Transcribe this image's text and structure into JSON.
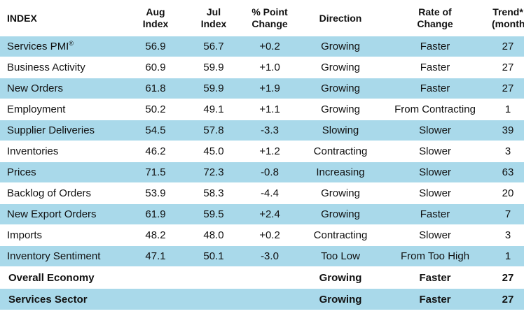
{
  "headers": {
    "index": "INDEX",
    "aug": [
      "Aug",
      "Index"
    ],
    "jul": [
      "Jul",
      "Index"
    ],
    "change": [
      "% Point",
      "Change"
    ],
    "direction": "Direction",
    "rate": [
      "Rate of",
      "Change"
    ],
    "trend": [
      "Trend*",
      "(months)"
    ]
  },
  "rows": [
    {
      "name": "Services PMI",
      "sup": "®",
      "aug": "56.9",
      "jul": "56.7",
      "change": "+0.2",
      "direction": "Growing",
      "rate": "Faster",
      "trend": "27"
    },
    {
      "name": "Business Activity",
      "aug": "60.9",
      "jul": "59.9",
      "change": "+1.0",
      "direction": "Growing",
      "rate": "Faster",
      "trend": "27"
    },
    {
      "name": "New Orders",
      "aug": "61.8",
      "jul": "59.9",
      "change": "+1.9",
      "direction": "Growing",
      "rate": "Faster",
      "trend": "27"
    },
    {
      "name": "Employment",
      "aug": "50.2",
      "jul": "49.1",
      "change": "+1.1",
      "direction": "Growing",
      "rate": "From Contracting",
      "trend": "1"
    },
    {
      "name": "Supplier Deliveries",
      "aug": "54.5",
      "jul": "57.8",
      "change": "-3.3",
      "direction": "Slowing",
      "rate": "Slower",
      "trend": "39"
    },
    {
      "name": "Inventories",
      "aug": "46.2",
      "jul": "45.0",
      "change": "+1.2",
      "direction": "Contracting",
      "rate": "Slower",
      "trend": "3"
    },
    {
      "name": "Prices",
      "aug": "71.5",
      "jul": "72.3",
      "change": "-0.8",
      "direction": "Increasing",
      "rate": "Slower",
      "trend": "63"
    },
    {
      "name": "Backlog of Orders",
      "aug": "53.9",
      "jul": "58.3",
      "change": "-4.4",
      "direction": "Growing",
      "rate": "Slower",
      "trend": "20"
    },
    {
      "name": "New Export Orders",
      "aug": "61.9",
      "jul": "59.5",
      "change": "+2.4",
      "direction": "Growing",
      "rate": "Faster",
      "trend": "7"
    },
    {
      "name": "Imports",
      "aug": "48.2",
      "jul": "48.0",
      "change": "+0.2",
      "direction": "Contracting",
      "rate": "Slower",
      "trend": "3"
    },
    {
      "name": "Inventory Sentiment",
      "aug": "47.1",
      "jul": "50.1",
      "change": "-3.0",
      "direction": "Too Low",
      "rate": "From Too High",
      "trend": "1"
    }
  ],
  "totals": [
    {
      "name": "Overall Economy",
      "direction": "Growing",
      "rate": "Faster",
      "trend": "27"
    },
    {
      "name": "Services Sector",
      "direction": "Growing",
      "rate": "Faster",
      "trend": "27"
    }
  ],
  "colors": {
    "row_band": "#a9d9ea",
    "background": "#ffffff",
    "text": "#111111"
  }
}
